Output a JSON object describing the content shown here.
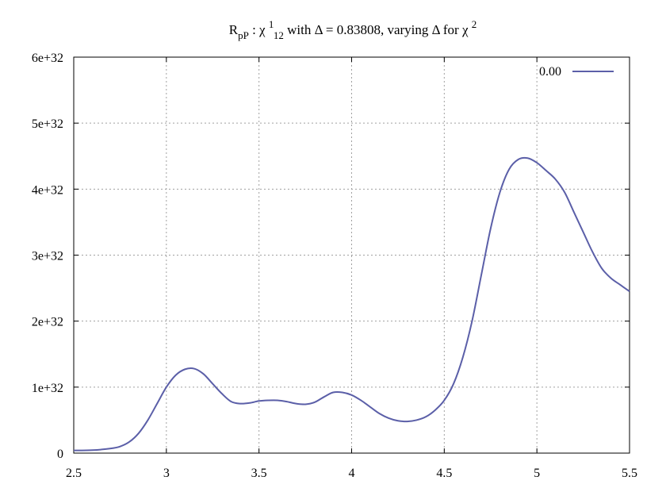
{
  "chart_data": {
    "type": "line",
    "title": "R",
    "title_parts": {
      "r_sub": "pP",
      "chi_sup": "1",
      "chi_sub": "12",
      "mid": " with Δ = 0.83808, varying Δ for χ ",
      "end_sup": "2",
      "colon": " : χ "
    },
    "xlabel": "",
    "ylabel": "",
    "xlim": [
      2.5,
      5.5
    ],
    "ylim": [
      0,
      6e+32
    ],
    "xticks": [
      2.5,
      3,
      3.5,
      4,
      4.5,
      5,
      5.5
    ],
    "xtick_labels": [
      "2.5",
      "3",
      "3.5",
      "4",
      "4.5",
      "5",
      "5.5"
    ],
    "yticks": [
      0,
      1e+32,
      2e+32,
      3e+32,
      4e+32,
      5e+32,
      6e+32
    ],
    "ytick_labels": [
      "0",
      "1e+32",
      "2e+32",
      "3e+32",
      "4e+32",
      "5e+32",
      "6e+32"
    ],
    "grid": true,
    "legend_position": "top-right",
    "series": [
      {
        "name": "0.00",
        "color": "#5b5fa8",
        "x": [
          2.5,
          2.6,
          2.7,
          2.75,
          2.8,
          2.85,
          2.9,
          2.95,
          3.0,
          3.05,
          3.1,
          3.15,
          3.2,
          3.25,
          3.3,
          3.35,
          3.4,
          3.45,
          3.5,
          3.55,
          3.6,
          3.65,
          3.7,
          3.75,
          3.8,
          3.85,
          3.9,
          3.95,
          4.0,
          4.05,
          4.1,
          4.15,
          4.2,
          4.25,
          4.3,
          4.35,
          4.4,
          4.45,
          4.5,
          4.55,
          4.6,
          4.65,
          4.7,
          4.75,
          4.8,
          4.85,
          4.9,
          4.95,
          5.0,
          5.05,
          5.1,
          5.15,
          5.2,
          5.25,
          5.3,
          5.35,
          5.4,
          5.45,
          5.5
        ],
        "y": [
          4e+30,
          4.5e+30,
          7e+30,
          1e+31,
          1.7e+31,
          3e+31,
          5e+31,
          7.5e+31,
          1e+32,
          1.18e+32,
          1.27e+32,
          1.28e+32,
          1.2e+32,
          1.05e+32,
          9e+31,
          7.8e+31,
          7.5e+31,
          7.6e+31,
          7.9e+31,
          8e+31,
          8e+31,
          7.8e+31,
          7.5e+31,
          7.4e+31,
          7.7e+31,
          8.5e+31,
          9.2e+31,
          9.2e+31,
          8.8e+31,
          8e+31,
          7e+31,
          6e+31,
          5.3e+31,
          4.9e+31,
          4.8e+31,
          5e+31,
          5.5e+31,
          6.5e+31,
          8e+31,
          1.05e+32,
          1.45e+32,
          2e+32,
          2.7e+32,
          3.4e+32,
          3.95e+32,
          4.3e+32,
          4.45e+32,
          4.47e+32,
          4.4e+32,
          4.28e+32,
          4.15e+32,
          3.95e+32,
          3.65e+32,
          3.35e+32,
          3.05e+32,
          2.8e+32,
          2.65e+32,
          2.55e+32,
          2.45e+32
        ]
      }
    ]
  }
}
